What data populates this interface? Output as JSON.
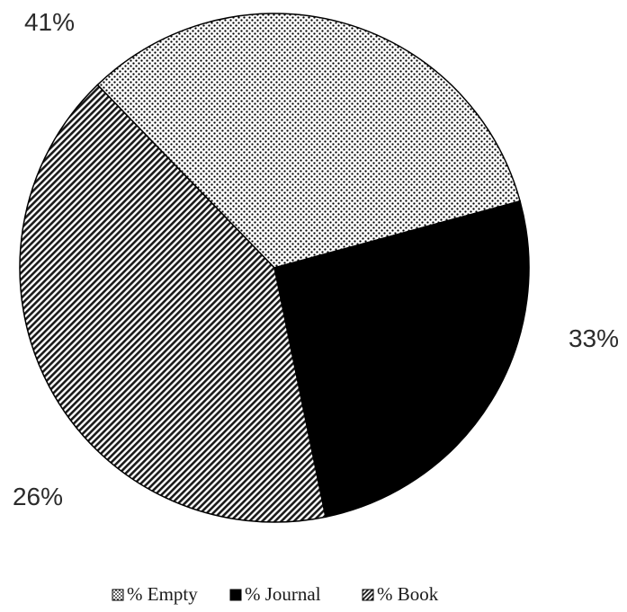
{
  "chart_data": {
    "type": "pie",
    "title": "",
    "legend_position": "bottom",
    "slices": [
      {
        "label": "% Empty",
        "value": 33,
        "display": "33%",
        "pattern": "dots"
      },
      {
        "label": "% Journal",
        "value": 26,
        "display": "26%",
        "pattern": "solid"
      },
      {
        "label": "% Book",
        "value": 41,
        "display": "41%",
        "pattern": "diagonal-stripes"
      }
    ],
    "colors": {
      "ink": "#000000",
      "background": "#ffffff"
    }
  }
}
